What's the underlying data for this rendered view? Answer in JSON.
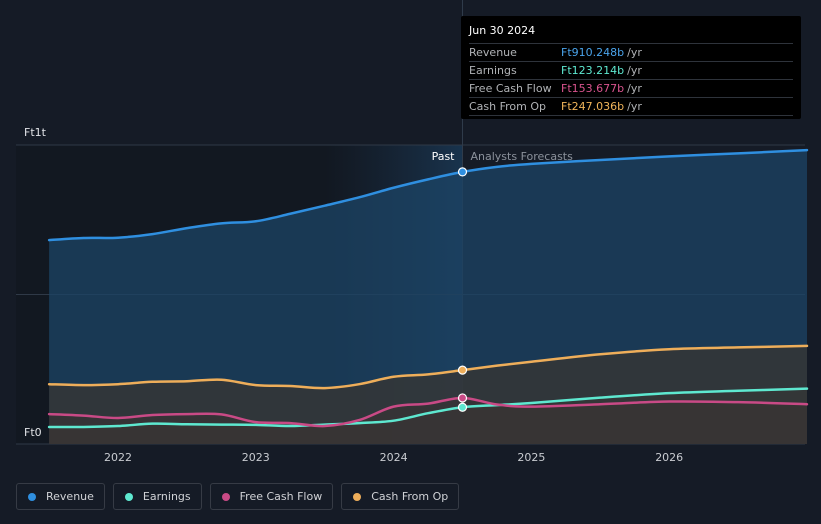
{
  "tooltip": {
    "date": "Jun 30 2024",
    "rows": [
      {
        "label": "Revenue",
        "value": "Ft910.248b",
        "unit": "/yr",
        "color": "#4aa3ea"
      },
      {
        "label": "Earnings",
        "value": "Ft123.214b",
        "unit": "/yr",
        "color": "#5ee8d0"
      },
      {
        "label": "Free Cash Flow",
        "value": "Ft153.677b",
        "unit": "/yr",
        "color": "#d9548e"
      },
      {
        "label": "Cash From Op",
        "value": "Ft247.036b",
        "unit": "/yr",
        "color": "#f1b55a"
      }
    ]
  },
  "legend": [
    {
      "label": "Revenue",
      "color": "#2f8fe0"
    },
    {
      "label": "Earnings",
      "color": "#5ee8d0"
    },
    {
      "label": "Free Cash Flow",
      "color": "#c94a86"
    },
    {
      "label": "Cash From Op",
      "color": "#eeae5a"
    }
  ],
  "chart_data": {
    "type": "line",
    "y_unit": "Ft billions",
    "ylim": [
      0,
      1000
    ],
    "y_tick_labels": [
      "Ft1t",
      "Ft0"
    ],
    "x_tick_labels": [
      "2022",
      "2023",
      "2024",
      "2025",
      "2026"
    ],
    "past_label": "Past",
    "forecast_label": "Analysts Forecasts",
    "divider_date": 2024.5,
    "series": [
      {
        "name": "Revenue",
        "color": "#2f8fe0",
        "x": [
          2021.5,
          2021.75,
          2022.0,
          2022.25,
          2022.5,
          2022.75,
          2023.0,
          2023.25,
          2023.5,
          2023.75,
          2024.0,
          2024.25,
          2024.5,
          2024.75,
          2025.0,
          2025.5,
          2026.0,
          2026.5,
          2027.0
        ],
        "y": [
          682,
          689,
          690,
          702,
          722,
          738,
          745,
          770,
          797,
          825,
          857,
          885,
          910,
          927,
          937,
          950,
          962,
          972,
          983
        ]
      },
      {
        "name": "Earnings",
        "color": "#5ee8d0",
        "x": [
          2021.5,
          2021.75,
          2022.0,
          2022.25,
          2022.5,
          2022.75,
          2023.0,
          2023.25,
          2023.5,
          2023.75,
          2024.0,
          2024.25,
          2024.5,
          2024.75,
          2025.0,
          2025.5,
          2026.0,
          2026.5,
          2027.0
        ],
        "y": [
          57,
          57,
          60,
          68,
          66,
          65,
          64,
          60,
          65,
          70,
          78,
          103,
          123,
          130,
          137,
          155,
          170,
          178,
          185
        ]
      },
      {
        "name": "Free Cash Flow",
        "color": "#c94a86",
        "x": [
          2021.5,
          2021.75,
          2022.0,
          2022.25,
          2022.5,
          2022.75,
          2023.0,
          2023.25,
          2023.5,
          2023.75,
          2024.0,
          2024.25,
          2024.5,
          2024.75,
          2025.0,
          2025.5,
          2026.0,
          2026.5,
          2027.0
        ],
        "y": [
          100,
          95,
          87,
          97,
          100,
          99,
          73,
          70,
          60,
          80,
          125,
          135,
          154,
          132,
          125,
          133,
          142,
          140,
          133
        ]
      },
      {
        "name": "Cash From Op",
        "color": "#eeae5a",
        "x": [
          2021.5,
          2021.75,
          2022.0,
          2022.25,
          2022.5,
          2022.75,
          2023.0,
          2023.25,
          2023.5,
          2023.75,
          2024.0,
          2024.25,
          2024.5,
          2024.75,
          2025.0,
          2025.5,
          2026.0,
          2026.5,
          2027.0
        ],
        "y": [
          200,
          197,
          200,
          208,
          210,
          215,
          197,
          194,
          187,
          200,
          225,
          233,
          247,
          262,
          275,
          300,
          317,
          323,
          328
        ]
      }
    ]
  }
}
